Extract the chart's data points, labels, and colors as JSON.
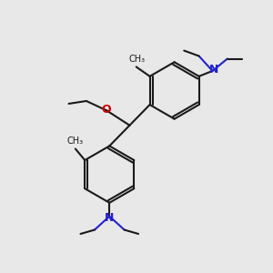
{
  "bg_color": "#e8e8e8",
  "bond_color": "#1a1a1a",
  "nitrogen_color": "#2222cc",
  "oxygen_color": "#cc0000",
  "lw": 1.5,
  "figsize": [
    3.0,
    3.0
  ],
  "dpi": 100,
  "xlim": [
    0,
    10
  ],
  "ylim": [
    0,
    10
  ]
}
